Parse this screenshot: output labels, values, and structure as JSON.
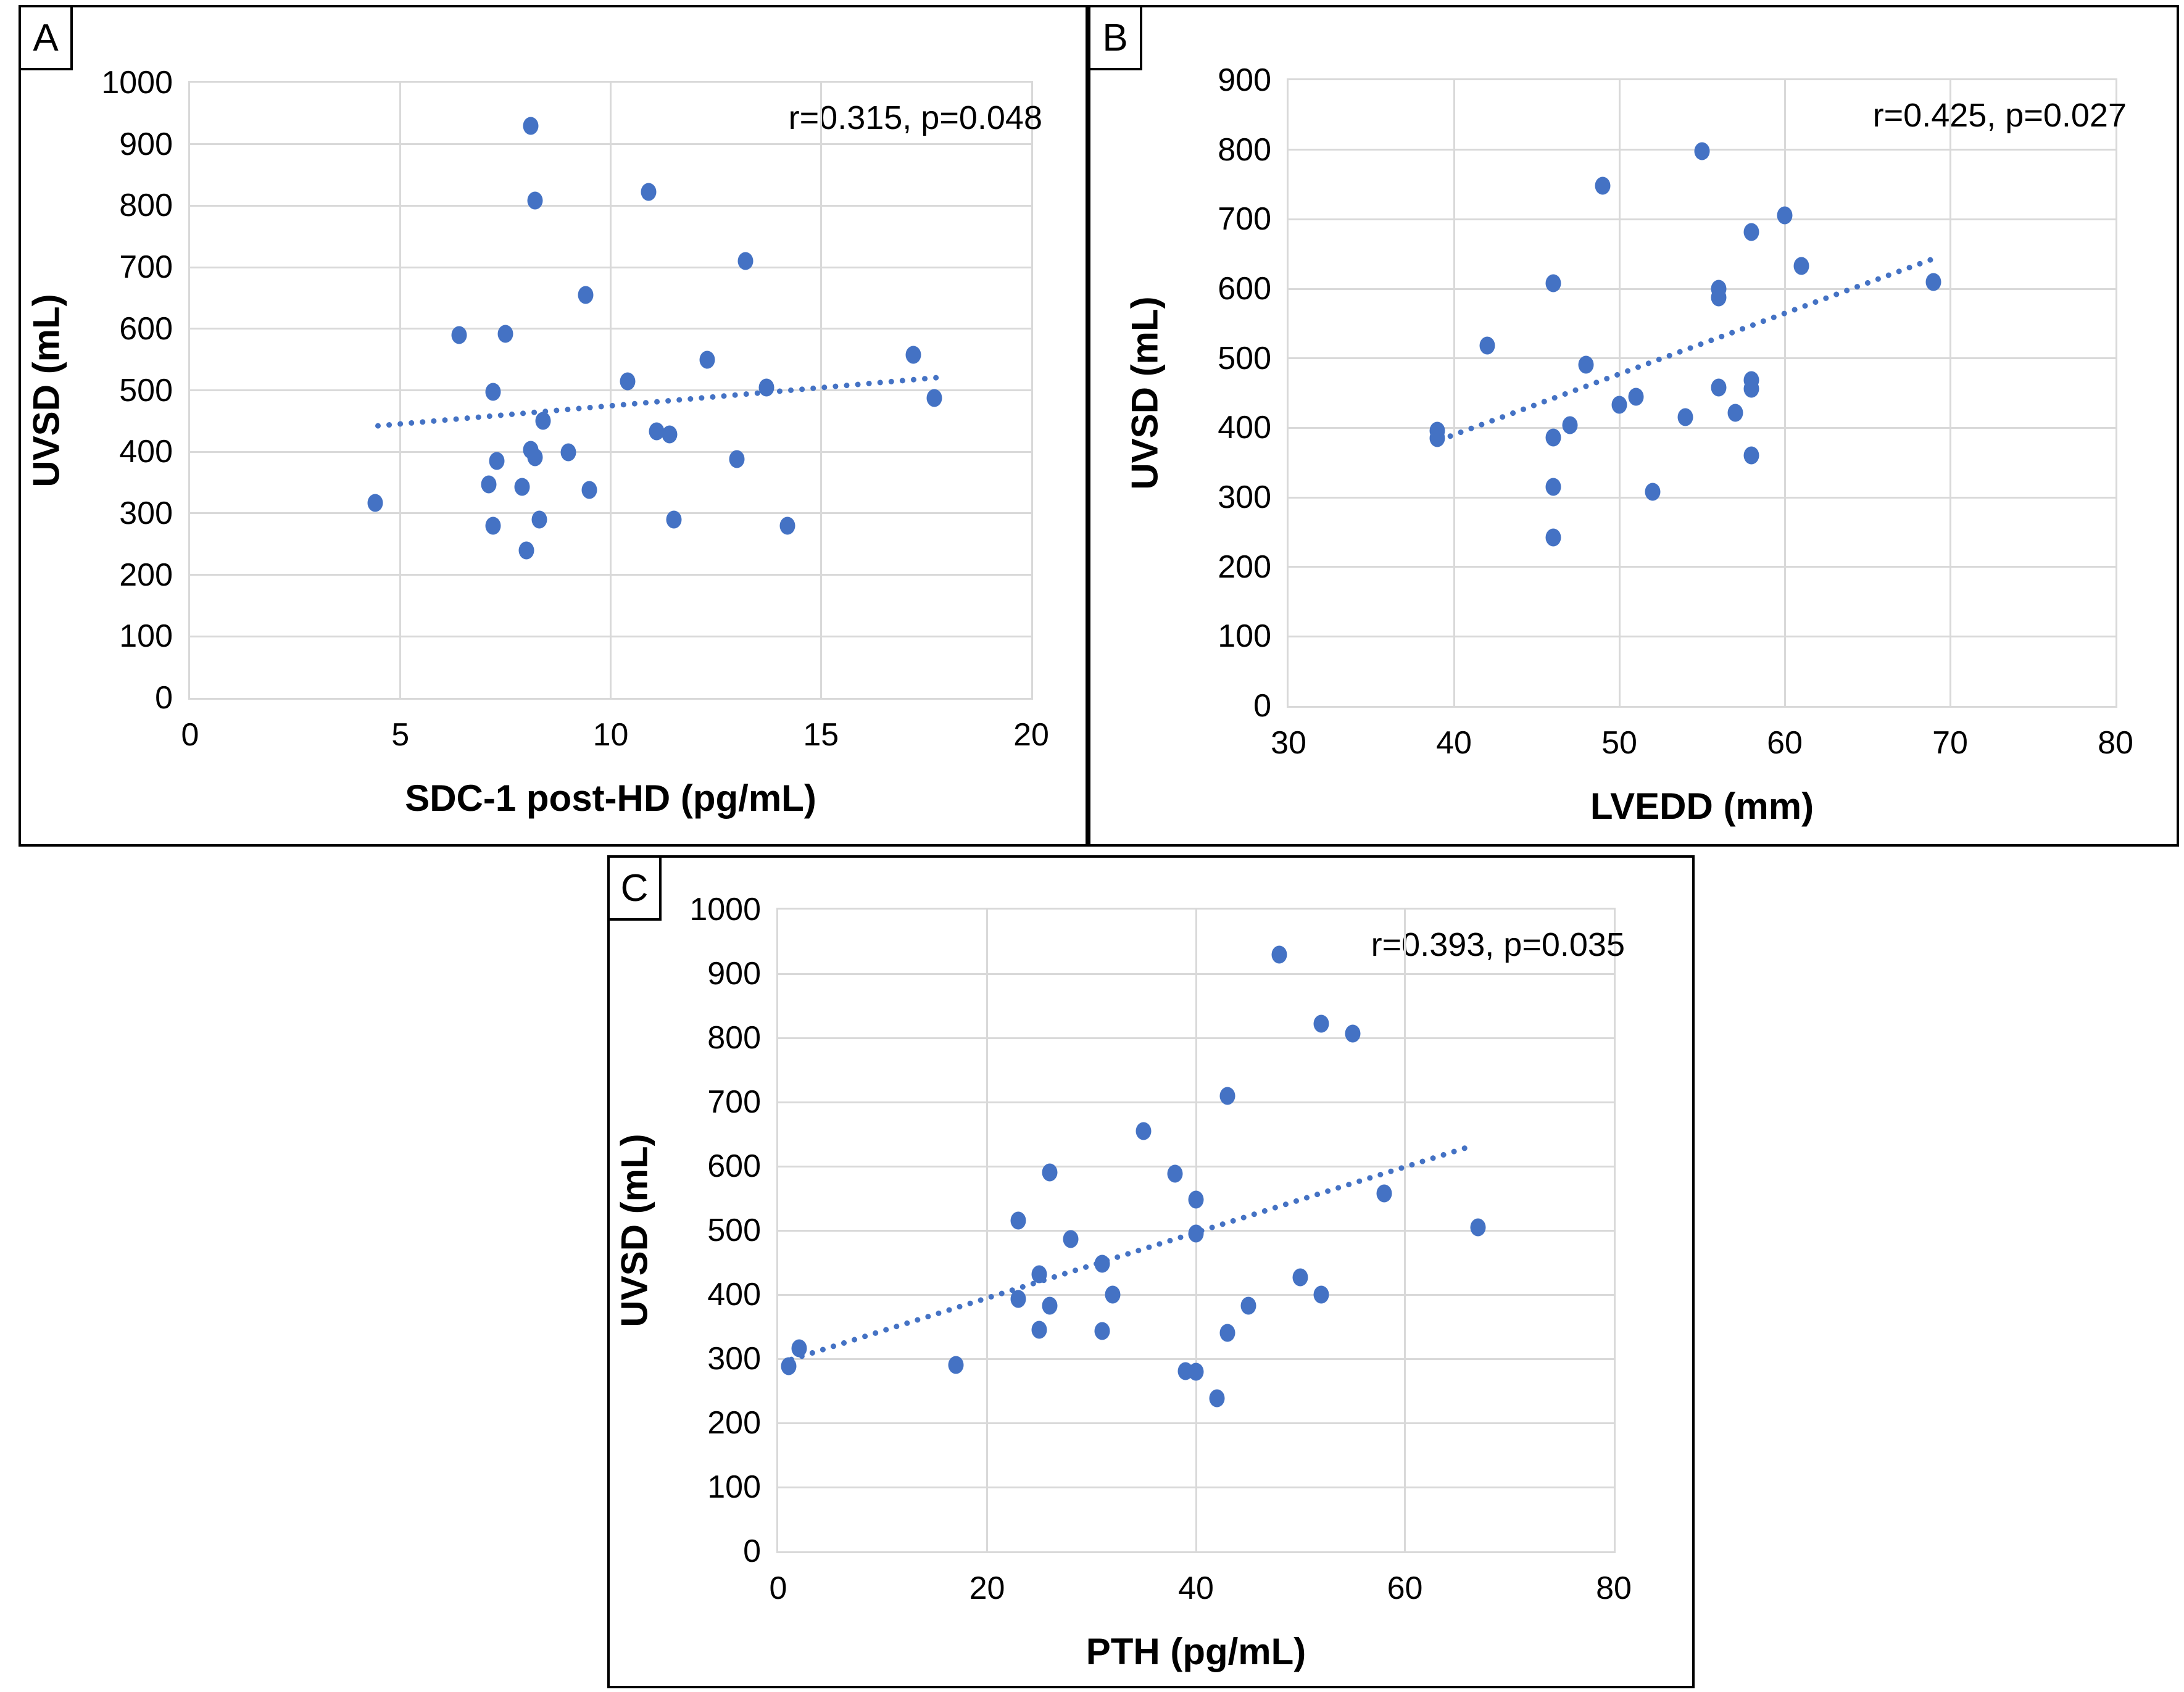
{
  "figure": {
    "background": "#ffffff",
    "panel_border_color": "#000000",
    "marker_color": "#4472C4",
    "trendline_color": "#4472C4",
    "gridline_color": "#D9D9D9",
    "text_color": "#000000"
  },
  "chart_data": [
    {
      "type": "scatter",
      "panel_label": "A",
      "annotation": "r=0.315, p=0.048",
      "xlabel": "SDC-1 post-HD (pg/mL)",
      "ylabel": "UVSD (mL)",
      "xlim": [
        0,
        20
      ],
      "ylim": [
        0,
        1000
      ],
      "xticks": [
        0,
        5,
        10,
        15,
        20
      ],
      "yticks": [
        0,
        100,
        200,
        300,
        400,
        500,
        600,
        700,
        800,
        900,
        1000
      ],
      "grid": true,
      "legend": false,
      "points": [
        [
          4.4,
          317
        ],
        [
          6.4,
          590
        ],
        [
          7.1,
          347
        ],
        [
          7.2,
          280
        ],
        [
          7.2,
          497
        ],
        [
          7.3,
          385
        ],
        [
          7.5,
          592
        ],
        [
          7.9,
          343
        ],
        [
          8.0,
          240
        ],
        [
          8.1,
          930
        ],
        [
          8.1,
          403
        ],
        [
          8.2,
          391
        ],
        [
          8.2,
          808
        ],
        [
          8.3,
          290
        ],
        [
          8.4,
          450
        ],
        [
          9.0,
          399
        ],
        [
          9.4,
          655
        ],
        [
          9.5,
          338
        ],
        [
          10.4,
          515
        ],
        [
          10.9,
          822
        ],
        [
          11.1,
          433
        ],
        [
          11.4,
          428
        ],
        [
          11.5,
          290
        ],
        [
          12.3,
          550
        ],
        [
          13.0,
          388
        ],
        [
          13.2,
          710
        ],
        [
          13.7,
          505
        ],
        [
          14.2,
          280
        ],
        [
          17.2,
          558
        ],
        [
          17.7,
          487
        ]
      ],
      "trendline": {
        "style": "dotted",
        "x1": 4.4,
        "y1": 442,
        "x2": 17.8,
        "y2": 521
      }
    },
    {
      "type": "scatter",
      "panel_label": "B",
      "annotation": "r=0.425, p=0.027",
      "xlabel": "LVEDD (mm)",
      "ylabel": "UVSD (mL)",
      "xlim": [
        30,
        80
      ],
      "ylim": [
        0,
        900
      ],
      "xticks": [
        30,
        40,
        50,
        60,
        70,
        80
      ],
      "yticks": [
        0,
        100,
        200,
        300,
        400,
        500,
        600,
        700,
        800,
        900
      ],
      "grid": true,
      "legend": false,
      "points": [
        [
          39,
          396
        ],
        [
          39,
          385
        ],
        [
          42,
          518
        ],
        [
          46,
          242
        ],
        [
          46,
          315
        ],
        [
          46,
          386
        ],
        [
          46,
          608
        ],
        [
          47,
          404
        ],
        [
          48,
          491
        ],
        [
          49,
          748
        ],
        [
          50,
          433
        ],
        [
          51,
          445
        ],
        [
          52,
          308
        ],
        [
          54,
          415
        ],
        [
          55,
          798
        ],
        [
          56,
          458
        ],
        [
          56,
          588
        ],
        [
          56,
          600
        ],
        [
          57,
          422
        ],
        [
          58,
          360
        ],
        [
          58,
          456
        ],
        [
          58,
          469
        ],
        [
          58,
          682
        ],
        [
          60,
          706
        ],
        [
          61,
          633
        ],
        [
          69,
          610
        ]
      ],
      "trendline": {
        "style": "dotted",
        "x1": 39,
        "y1": 381,
        "x2": 69,
        "y2": 643
      }
    },
    {
      "type": "scatter",
      "panel_label": "C",
      "annotation": "r=0.393, p=0.035",
      "xlabel": "PTH (pg/mL)",
      "ylabel": "UVSD (mL)",
      "xlim": [
        0,
        80
      ],
      "ylim": [
        0,
        1000
      ],
      "xticks": [
        0,
        20,
        40,
        60,
        80
      ],
      "yticks": [
        0,
        100,
        200,
        300,
        400,
        500,
        600,
        700,
        800,
        900,
        1000
      ],
      "grid": true,
      "legend": false,
      "points": [
        [
          1,
          288
        ],
        [
          2,
          316
        ],
        [
          17,
          290
        ],
        [
          23,
          393
        ],
        [
          23,
          515
        ],
        [
          25,
          345
        ],
        [
          25,
          432
        ],
        [
          26,
          383
        ],
        [
          26,
          590
        ],
        [
          28,
          487
        ],
        [
          31,
          343
        ],
        [
          31,
          448
        ],
        [
          32,
          400
        ],
        [
          35,
          655
        ],
        [
          38,
          588
        ],
        [
          39,
          281
        ],
        [
          40,
          280
        ],
        [
          40,
          495
        ],
        [
          40,
          548
        ],
        [
          42,
          238
        ],
        [
          43,
          340
        ],
        [
          43,
          710
        ],
        [
          45,
          383
        ],
        [
          48,
          930
        ],
        [
          50,
          427
        ],
        [
          52,
          400
        ],
        [
          52,
          822
        ],
        [
          55,
          807
        ],
        [
          58,
          558
        ],
        [
          67,
          505
        ]
      ],
      "trendline": {
        "style": "dotted",
        "x1": 1,
        "y1": 298,
        "x2": 66,
        "y2": 630
      }
    }
  ]
}
